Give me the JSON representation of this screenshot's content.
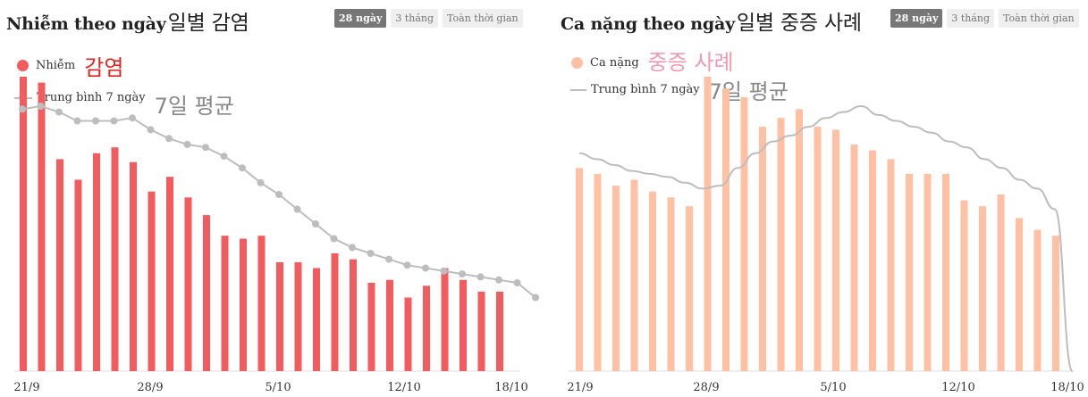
{
  "colors": {
    "cases_bar": "#f25c5f",
    "severe_bar": "#ffc0a3",
    "avg_line": "#bdbdbd",
    "kr_cases": "#e02424",
    "kr_severe": "#f29ab0",
    "kr_avg": "#888888"
  },
  "left": {
    "title": "Nhiễm theo ngày",
    "title_kr": "일별 감염",
    "tabs": [
      "28 ngày",
      "3 tháng",
      "Toàn thời gian"
    ],
    "legend": {
      "bars": "Nhiễm",
      "bars_kr": "감염",
      "line": "Trung bình 7 ngày",
      "line_kr": "7일 평균"
    }
  },
  "right": {
    "title": "Ca nặng theo ngày",
    "title_kr": "일별 중증 사례",
    "tabs": [
      "28 ngày",
      "3 tháng",
      "Toàn thời gian"
    ],
    "legend": {
      "bars": "Ca nặng",
      "bars_kr": "중증 사례",
      "line": "Trung bình 7 ngày",
      "line_kr": "7일 평균"
    }
  },
  "chart_data": [
    {
      "type": "bar",
      "title": "Nhiễm theo ngày",
      "x_ticks": [
        "21/9",
        "28/9",
        "5/10",
        "12/10",
        "18/10"
      ],
      "ylim": [
        0,
        100
      ],
      "series": [
        {
          "name": "Nhiễm",
          "values": [
            100,
            98,
            72,
            65,
            74,
            76,
            71,
            61,
            66,
            59,
            53,
            46,
            45,
            46,
            37,
            37,
            35,
            40,
            38,
            30,
            31,
            25,
            29,
            35,
            31,
            27,
            27
          ]
        },
        {
          "name": "Trung bình 7 ngày",
          "values": [
            89,
            90,
            88,
            85,
            85,
            85,
            86,
            82,
            79,
            77,
            76,
            73,
            69,
            64,
            60,
            55,
            50,
            45,
            42,
            40,
            38,
            36,
            35,
            34,
            33,
            32,
            31,
            30,
            25
          ]
        }
      ]
    },
    {
      "type": "bar",
      "title": "Ca nặng theo ngày",
      "x_ticks": [
        "21/9",
        "28/9",
        "5/10",
        "12/10",
        "18/10"
      ],
      "ylim": [
        0,
        100
      ],
      "series": [
        {
          "name": "Ca nặng",
          "values": [
            69,
            67,
            63,
            65,
            61,
            59,
            56,
            100,
            96,
            93,
            83,
            86,
            89,
            83,
            82,
            77,
            75,
            72,
            67,
            67,
            67,
            58,
            56,
            60,
            52,
            48,
            46
          ]
        },
        {
          "name": "Trung bình 7 ngày",
          "values": [
            74,
            72,
            70,
            68,
            67,
            66,
            64,
            62,
            63,
            69,
            74,
            78,
            80,
            83,
            86,
            88,
            90,
            87,
            85,
            83,
            81,
            78,
            76,
            72,
            69,
            65,
            62,
            55,
            0
          ]
        }
      ]
    }
  ]
}
